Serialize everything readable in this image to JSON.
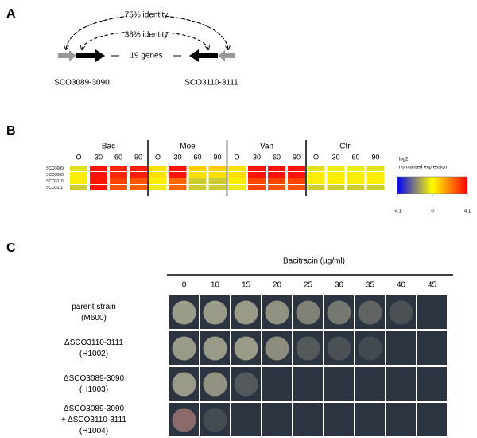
{
  "panel_a": {
    "label": "A",
    "arc_outer": "75% identity",
    "arc_inner": "38% identity",
    "middle": "19 genes",
    "left_locus": "SCO3089-3090",
    "right_locus": "SCO3110-3111"
  },
  "panel_b": {
    "label": "B",
    "rows": [
      "SCO3089",
      "SCO3090",
      "SCO3110",
      "SCO3111"
    ],
    "groups": [
      {
        "name": "Bac",
        "columns": [
          "O",
          "30",
          "60",
          "90"
        ],
        "values": [
          [
            -0.5,
            3.8,
            3.5,
            3.6
          ],
          [
            0.3,
            3.8,
            3.5,
            3.6
          ],
          [
            0.3,
            3.8,
            3.0,
            2.8
          ],
          [
            -0.8,
            3.8,
            2.8,
            2.6
          ]
        ]
      },
      {
        "name": "Moe",
        "columns": [
          "O",
          "30",
          "60",
          "90"
        ],
        "values": [
          [
            0.5,
            3.8,
            0.8,
            0.8
          ],
          [
            0.5,
            3.8,
            0.5,
            0.5
          ],
          [
            0.3,
            2.5,
            -0.8,
            -0.8
          ],
          [
            -0.3,
            2.5,
            -0.8,
            -0.8
          ]
        ]
      },
      {
        "name": "Van",
        "columns": [
          "O",
          "30",
          "60",
          "90"
        ],
        "values": [
          [
            0.5,
            3.8,
            3.8,
            3.8
          ],
          [
            0.5,
            3.8,
            3.8,
            3.8
          ],
          [
            0.3,
            3.0,
            3.0,
            3.0
          ],
          [
            -0.3,
            3.0,
            2.8,
            2.8
          ]
        ]
      },
      {
        "name": "Ctrl",
        "columns": [
          "O",
          "30",
          "60",
          "90"
        ],
        "values": [
          [
            -0.5,
            -0.3,
            -0.3,
            -0.5
          ],
          [
            0.3,
            0.3,
            0.3,
            0.3
          ],
          [
            0.3,
            0.3,
            0.3,
            0.3
          ],
          [
            -0.8,
            -0.8,
            -0.8,
            -0.8
          ]
        ]
      }
    ],
    "legend_title": [
      "log2",
      "normalised expression"
    ],
    "colorbar_lim": [
      -4.1,
      4.1
    ],
    "colorbar_ticks": [
      -4.1,
      0,
      4.1
    ],
    "colors": {
      "low": "#0000ff",
      "mid": "#ffff00",
      "high": "#ff0000"
    }
  },
  "panel_c": {
    "label": "C",
    "title": "Bacitracin (µg/ml)",
    "concentrations": [
      "0",
      "10",
      "15",
      "20",
      "25",
      "30",
      "35",
      "40",
      "45"
    ],
    "strains": [
      [
        "parent strain",
        "(M600)"
      ],
      [
        "ΔSCO3110-3111",
        "(H1002)"
      ],
      [
        "ΔSCO3089-3090",
        "(H1003)"
      ],
      [
        "ΔSCO3089-3090",
        "+ ΔSCO3110-3111",
        "(H1004)"
      ]
    ]
  }
}
